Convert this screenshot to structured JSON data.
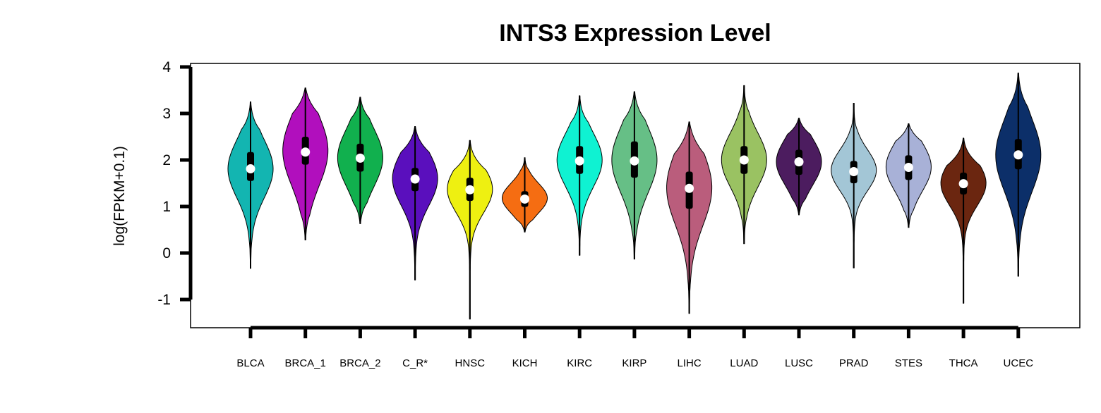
{
  "chart_data": {
    "type": "violin",
    "title": "INTS3 Expression Level",
    "xlabel": "",
    "ylabel": "log(FPKM+0.1)",
    "ylim": [
      -1.6,
      4.1
    ],
    "yticks": [
      -1,
      0,
      1,
      2,
      3,
      4
    ],
    "grid": false,
    "legend": "none",
    "categories": [
      "BLCA",
      "BRCA_1",
      "BRCA_2",
      "C_R*",
      "HNSC",
      "KICH",
      "KIRC",
      "KIRP",
      "LIHC",
      "LUAD",
      "LUSC",
      "PRAD",
      "STES",
      "THCA",
      "UCEC"
    ],
    "series": [
      {
        "category": "BLCA",
        "color": "#13b5b1",
        "min": -0.33,
        "max": 3.25,
        "q1": 1.55,
        "median": 1.81,
        "q3": 2.17,
        "mode": 1.81,
        "spread": 0.62
      },
      {
        "category": "BRCA_1",
        "color": "#b10fbd",
        "min": 0.28,
        "max": 3.55,
        "q1": 1.9,
        "median": 2.17,
        "q3": 2.5,
        "mode": 2.2,
        "spread": 0.75
      },
      {
        "category": "BRCA_2",
        "color": "#11b04e",
        "min": 0.63,
        "max": 3.35,
        "q1": 1.75,
        "median": 2.04,
        "q3": 2.35,
        "mode": 2.05,
        "spread": 0.62
      },
      {
        "category": "C_R*",
        "color": "#5a0fbd",
        "min": -0.58,
        "max": 2.72,
        "q1": 1.33,
        "median": 1.59,
        "q3": 1.83,
        "mode": 1.6,
        "spread": 0.58
      },
      {
        "category": "HNSC",
        "color": "#eef011",
        "min": -1.42,
        "max": 2.42,
        "q1": 1.12,
        "median": 1.36,
        "q3": 1.62,
        "mode": 1.37,
        "spread": 0.5
      },
      {
        "category": "KICH",
        "color": "#f56d12",
        "min": 0.45,
        "max": 2.05,
        "q1": 0.99,
        "median": 1.16,
        "q3": 1.33,
        "mode": 1.18,
        "spread": 0.32
      },
      {
        "category": "KIRC",
        "color": "#0ff2d2",
        "min": -0.05,
        "max": 3.38,
        "q1": 1.7,
        "median": 1.98,
        "q3": 2.3,
        "mode": 2.0,
        "spread": 0.58
      },
      {
        "category": "KIRP",
        "color": "#66bf86",
        "min": -0.13,
        "max": 3.47,
        "q1": 1.62,
        "median": 1.98,
        "q3": 2.4,
        "mode": 2.0,
        "spread": 0.7
      },
      {
        "category": "LIHC",
        "color": "#ba5d7c",
        "min": -1.3,
        "max": 2.82,
        "q1": 0.95,
        "median": 1.39,
        "q3": 1.75,
        "mode": 1.4,
        "spread": 0.8
      },
      {
        "category": "LUAD",
        "color": "#9ac262",
        "min": 0.2,
        "max": 3.6,
        "q1": 1.7,
        "median": 2.0,
        "q3": 2.3,
        "mode": 2.0,
        "spread": 0.58
      },
      {
        "category": "LUSC",
        "color": "#4c1c5f",
        "min": 0.82,
        "max": 2.9,
        "q1": 1.68,
        "median": 1.96,
        "q3": 2.22,
        "mode": 1.96,
        "spread": 0.5
      },
      {
        "category": "PRAD",
        "color": "#a3c6d6",
        "min": -0.32,
        "max": 3.22,
        "q1": 1.5,
        "median": 1.75,
        "q3": 1.98,
        "mode": 1.78,
        "spread": 0.44
      },
      {
        "category": "STES",
        "color": "#a8b1d7",
        "min": 0.55,
        "max": 2.78,
        "q1": 1.57,
        "median": 1.84,
        "q3": 2.1,
        "mode": 1.85,
        "spread": 0.52
      },
      {
        "category": "THCA",
        "color": "#6b2610",
        "min": -1.08,
        "max": 2.47,
        "q1": 1.26,
        "median": 1.49,
        "q3": 1.73,
        "mode": 1.5,
        "spread": 0.48
      },
      {
        "category": "UCEC",
        "color": "#0c2f69",
        "min": -0.5,
        "max": 3.87,
        "q1": 1.8,
        "median": 2.11,
        "q3": 2.45,
        "mode": 2.1,
        "spread": 0.78
      }
    ]
  }
}
